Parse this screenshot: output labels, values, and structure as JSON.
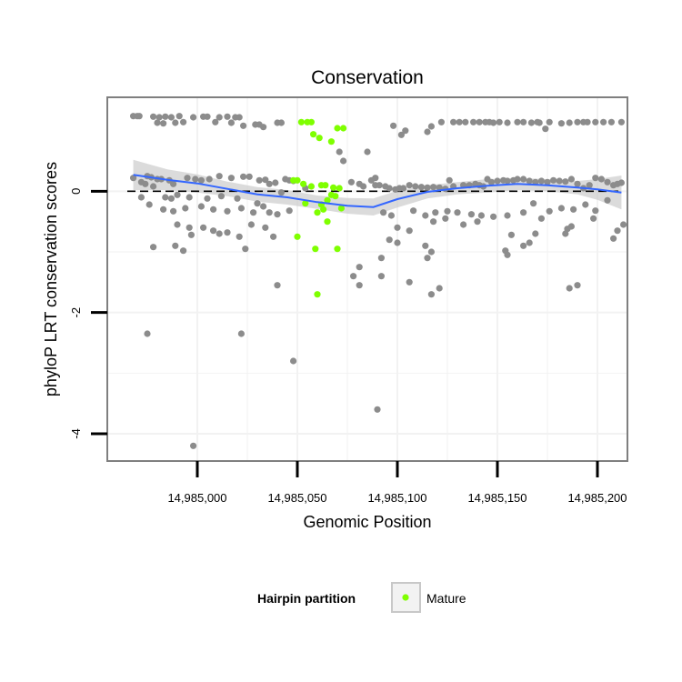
{
  "chart_data": {
    "type": "scatter",
    "title": "Conservation",
    "xlabel": "Genomic Position",
    "ylabel": "phyloP LRT conservation scores",
    "xlim": [
      14984955,
      14985215
    ],
    "ylim": [
      -4.45,
      1.55
    ],
    "x_ticks": [
      {
        "value": 14985000,
        "label": "14,985,000"
      },
      {
        "value": 14985050,
        "label": "14,985,050"
      },
      {
        "value": 14985100,
        "label": "14,985,100"
      },
      {
        "value": 14985150,
        "label": "14,985,150"
      },
      {
        "value": 14985200,
        "label": "14,985,200"
      }
    ],
    "y_ticks": [
      {
        "value": 0,
        "label": "0"
      },
      {
        "value": -2,
        "label": "-2"
      },
      {
        "value": -4,
        "label": "-4"
      }
    ],
    "reference_line": {
      "y": 0,
      "style": "dashed"
    },
    "grid": true,
    "colors": {
      "background_points": "#8c8c8c",
      "mature_points": "#7fff00",
      "smooth_line": "#3366ff",
      "confidence_band": "#cccccc",
      "panel_border": "#7f7f7f",
      "grid": "#f2f2f2"
    },
    "legend": {
      "title": "Hairpin partition",
      "position": "bottom",
      "entries": [
        {
          "label": "Mature",
          "color": "#7fff00"
        }
      ]
    },
    "series": [
      {
        "name": "",
        "color": "#8c8c8c",
        "points": [
          [
            14984968,
            1.24
          ],
          [
            14984970,
            1.24
          ],
          [
            14984971,
            1.24
          ],
          [
            14984978,
            1.23
          ],
          [
            14984980,
            1.13
          ],
          [
            14984981,
            1.22
          ],
          [
            14984983,
            1.12
          ],
          [
            14984984,
            1.23
          ],
          [
            14984987,
            1.22
          ],
          [
            14984989,
            1.13
          ],
          [
            14984991,
            1.24
          ],
          [
            14984993,
            1.14
          ],
          [
            14984998,
            1.22
          ],
          [
            14985003,
            1.23
          ],
          [
            14985005,
            1.23
          ],
          [
            14985009,
            1.14
          ],
          [
            14985011,
            1.22
          ],
          [
            14985015,
            1.23
          ],
          [
            14985017,
            1.13
          ],
          [
            14985019,
            1.22
          ],
          [
            14985021,
            1.22
          ],
          [
            14985023,
            1.08
          ],
          [
            14985029,
            1.1
          ],
          [
            14985031,
            1.1
          ],
          [
            14985033,
            1.06
          ],
          [
            14985040,
            1.13
          ],
          [
            14985042,
            1.13
          ],
          [
            14985098,
            1.08
          ],
          [
            14985102,
            0.93
          ],
          [
            14985104,
            1.0
          ],
          [
            14985115,
            0.98
          ],
          [
            14985117,
            1.07
          ],
          [
            14985122,
            1.14
          ],
          [
            14985128,
            1.14
          ],
          [
            14985131,
            1.14
          ],
          [
            14985134,
            1.14
          ],
          [
            14985138,
            1.14
          ],
          [
            14985141,
            1.14
          ],
          [
            14985144,
            1.14
          ],
          [
            14985146,
            1.14
          ],
          [
            14985148,
            1.13
          ],
          [
            14985151,
            1.14
          ],
          [
            14985155,
            1.13
          ],
          [
            14985160,
            1.14
          ],
          [
            14985163,
            1.14
          ],
          [
            14985167,
            1.13
          ],
          [
            14985170,
            1.14
          ],
          [
            14985171,
            1.13
          ],
          [
            14985174,
            1.03
          ],
          [
            14985176,
            1.14
          ],
          [
            14985182,
            1.12
          ],
          [
            14985186,
            1.13
          ],
          [
            14985190,
            1.14
          ],
          [
            14985193,
            1.14
          ],
          [
            14985195,
            1.14
          ],
          [
            14985199,
            1.14
          ],
          [
            14985203,
            1.14
          ],
          [
            14985207,
            1.14
          ],
          [
            14985212,
            1.14
          ],
          [
            14985071,
            0.65
          ],
          [
            14985073,
            0.5
          ],
          [
            14985085,
            0.65
          ],
          [
            14985077,
            0.15
          ],
          [
            14985081,
            0.12
          ],
          [
            14985083,
            0.08
          ],
          [
            14985087,
            0.18
          ],
          [
            14985089,
            0.22
          ],
          [
            14984968,
            0.22
          ],
          [
            14984972,
            0.15
          ],
          [
            14984975,
            0.25
          ],
          [
            14984977,
            0.23
          ],
          [
            14984980,
            0.2
          ],
          [
            14984982,
            0.2
          ],
          [
            14984986,
            0.18
          ],
          [
            14984988,
            0.12
          ],
          [
            14984995,
            0.22
          ],
          [
            14984999,
            0.2
          ],
          [
            14985002,
            0.18
          ],
          [
            14985006,
            0.2
          ],
          [
            14985011,
            0.25
          ],
          [
            14985017,
            0.22
          ],
          [
            14985023,
            0.24
          ],
          [
            14985026,
            0.24
          ],
          [
            14985031,
            0.18
          ],
          [
            14985034,
            0.19
          ],
          [
            14985036,
            0.12
          ],
          [
            14985039,
            0.14
          ],
          [
            14985044,
            0.2
          ],
          [
            14985046,
            0.18
          ],
          [
            14985048,
            0.17
          ],
          [
            14985089,
            0.1
          ],
          [
            14985091,
            0.1
          ],
          [
            14985094,
            0.08
          ],
          [
            14985096,
            0.05
          ],
          [
            14985099,
            0.03
          ],
          [
            14985101,
            0.05
          ],
          [
            14985103,
            0.05
          ],
          [
            14985106,
            0.1
          ],
          [
            14985109,
            0.08
          ],
          [
            14985112,
            0.07
          ],
          [
            14985115,
            0.06
          ],
          [
            14985118,
            0.07
          ],
          [
            14985121,
            0.06
          ],
          [
            14985124,
            0.04
          ],
          [
            14985126,
            0.18
          ],
          [
            14985128,
            0.08
          ],
          [
            14985133,
            0.1
          ],
          [
            14985136,
            0.1
          ],
          [
            14985139,
            0.12
          ],
          [
            14985141,
            0.1
          ],
          [
            14985143,
            0.08
          ],
          [
            14985145,
            0.2
          ],
          [
            14985147,
            0.15
          ],
          [
            14985150,
            0.17
          ],
          [
            14985153,
            0.18
          ],
          [
            14985155,
            0.17
          ],
          [
            14985158,
            0.18
          ],
          [
            14985160,
            0.2
          ],
          [
            14985163,
            0.2
          ],
          [
            14985166,
            0.17
          ],
          [
            14985169,
            0.15
          ],
          [
            14985172,
            0.17
          ],
          [
            14985175,
            0.15
          ],
          [
            14985178,
            0.18
          ],
          [
            14985181,
            0.17
          ],
          [
            14985184,
            0.16
          ],
          [
            14985187,
            0.2
          ],
          [
            14985190,
            0.12
          ],
          [
            14985193,
            0.05
          ],
          [
            14985196,
            0.1
          ],
          [
            14985199,
            0.22
          ],
          [
            14985202,
            0.2
          ],
          [
            14985205,
            0.15
          ],
          [
            14985208,
            0.1
          ],
          [
            14985210,
            0.12
          ],
          [
            14985212,
            0.14
          ],
          [
            14984974,
            0.12
          ],
          [
            14984978,
            0.08
          ],
          [
            14984984,
            -0.1
          ],
          [
            14984987,
            -0.12
          ],
          [
            14984990,
            -0.06
          ],
          [
            14984996,
            -0.1
          ],
          [
            14985005,
            -0.12
          ],
          [
            14985012,
            -0.08
          ],
          [
            14985020,
            -0.12
          ],
          [
            14985030,
            -0.2
          ],
          [
            14985033,
            -0.25
          ],
          [
            14985042,
            -0.02
          ],
          [
            14985054,
            0.05
          ],
          [
            14984972,
            -0.1
          ],
          [
            14984976,
            -0.22
          ],
          [
            14984983,
            -0.3
          ],
          [
            14984988,
            -0.33
          ],
          [
            14984994,
            -0.28
          ],
          [
            14985002,
            -0.25
          ],
          [
            14985008,
            -0.3
          ],
          [
            14985015,
            -0.33
          ],
          [
            14985022,
            -0.28
          ],
          [
            14985028,
            -0.35
          ],
          [
            14985036,
            -0.35
          ],
          [
            14985040,
            -0.38
          ],
          [
            14985046,
            -0.32
          ],
          [
            14985093,
            -0.35
          ],
          [
            14985097,
            -0.4
          ],
          [
            14985108,
            -0.32
          ],
          [
            14985114,
            -0.4
          ],
          [
            14985119,
            -0.35
          ],
          [
            14985125,
            -0.33
          ],
          [
            14985130,
            -0.35
          ],
          [
            14985137,
            -0.38
          ],
          [
            14985142,
            -0.4
          ],
          [
            14985148,
            -0.42
          ],
          [
            14985155,
            -0.4
          ],
          [
            14985163,
            -0.35
          ],
          [
            14985168,
            -0.2
          ],
          [
            14985176,
            -0.33
          ],
          [
            14985182,
            -0.28
          ],
          [
            14985188,
            -0.3
          ],
          [
            14985194,
            -0.22
          ],
          [
            14985199,
            -0.32
          ],
          [
            14985205,
            -0.15
          ],
          [
            14984990,
            -0.55
          ],
          [
            14984996,
            -0.6
          ],
          [
            14985003,
            -0.6
          ],
          [
            14985008,
            -0.65
          ],
          [
            14985011,
            -0.7
          ],
          [
            14985015,
            -0.68
          ],
          [
            14985021,
            -0.75
          ],
          [
            14985027,
            -0.55
          ],
          [
            14985034,
            -0.6
          ],
          [
            14985038,
            -0.75
          ],
          [
            14985100,
            -0.6
          ],
          [
            14985106,
            -0.65
          ],
          [
            14985118,
            -0.5
          ],
          [
            14985124,
            -0.45
          ],
          [
            14985133,
            -0.55
          ],
          [
            14985140,
            -0.5
          ],
          [
            14985157,
            -0.72
          ],
          [
            14985172,
            -0.45
          ],
          [
            14985185,
            -0.62
          ],
          [
            14985187,
            -0.58
          ],
          [
            14985198,
            -0.45
          ],
          [
            14985208,
            -0.78
          ],
          [
            14985210,
            -0.65
          ],
          [
            14985213,
            -0.55
          ],
          [
            14984978,
            -0.92
          ],
          [
            14984989,
            -0.9
          ],
          [
            14984993,
            -0.98
          ],
          [
            14984997,
            -0.72
          ],
          [
            14985024,
            -0.95
          ],
          [
            14985096,
            -0.8
          ],
          [
            14985100,
            -0.85
          ],
          [
            14985114,
            -0.9
          ],
          [
            14985117,
            -1.0
          ],
          [
            14985154,
            -0.98
          ],
          [
            14985163,
            -0.9
          ],
          [
            14985166,
            -0.85
          ],
          [
            14985169,
            -0.7
          ],
          [
            14985184,
            -0.7
          ],
          [
            14985081,
            -1.25
          ],
          [
            14985092,
            -1.1
          ],
          [
            14985106,
            -1.5
          ],
          [
            14985117,
            -1.7
          ],
          [
            14985121,
            -1.6
          ],
          [
            14985078,
            -1.4
          ],
          [
            14985081,
            -1.55
          ],
          [
            14985092,
            -1.4
          ],
          [
            14985115,
            -1.1
          ],
          [
            14985040,
            -1.55
          ],
          [
            14985155,
            -1.05
          ],
          [
            14985186,
            -1.6
          ],
          [
            14985190,
            -1.55
          ],
          [
            14984975,
            -2.35
          ],
          [
            14985022,
            -2.35
          ],
          [
            14985048,
            -2.8
          ],
          [
            14985090,
            -3.6
          ],
          [
            14984998,
            -4.2
          ]
        ]
      },
      {
        "name": "Mature",
        "color": "#7fff00",
        "points": [
          [
            14985052,
            1.14
          ],
          [
            14985055,
            1.14
          ],
          [
            14985057,
            1.14
          ],
          [
            14985058,
            0.94
          ],
          [
            14985061,
            0.88
          ],
          [
            14985067,
            0.82
          ],
          [
            14985070,
            1.04
          ],
          [
            14985073,
            1.04
          ],
          [
            14985048,
            0.18
          ],
          [
            14985050,
            0.18
          ],
          [
            14985053,
            0.12
          ],
          [
            14985057,
            0.08
          ],
          [
            14985062,
            0.1
          ],
          [
            14985064,
            0.1
          ],
          [
            14985068,
            0.06
          ],
          [
            14985071,
            0.05
          ],
          [
            14985067,
            -0.06
          ],
          [
            14985069,
            -0.08
          ],
          [
            14985065,
            -0.15
          ],
          [
            14985062,
            -0.22
          ],
          [
            14985054,
            -0.2
          ],
          [
            14985060,
            -0.35
          ],
          [
            14985063,
            -0.3
          ],
          [
            14985072,
            -0.28
          ],
          [
            14985065,
            -0.5
          ],
          [
            14985050,
            -0.75
          ],
          [
            14985059,
            -0.95
          ],
          [
            14985070,
            -0.95
          ],
          [
            14985060,
            -1.7
          ]
        ]
      }
    ],
    "smooth": {
      "x": [
        14984968,
        14984985,
        14985000,
        14985015,
        14985030,
        14985045,
        14985060,
        14985075,
        14985088,
        14985100,
        14985115,
        14985130,
        14985145,
        14985160,
        14985175,
        14985190,
        14985200,
        14985212
      ],
      "y": [
        0.27,
        0.19,
        0.13,
        0.04,
        -0.05,
        -0.1,
        -0.18,
        -0.24,
        -0.26,
        -0.13,
        -0.01,
        0.05,
        0.09,
        0.12,
        0.1,
        0.06,
        0.03,
        -0.02
      ],
      "lower": [
        0.02,
        0.02,
        -0.02,
        -0.08,
        -0.17,
        -0.22,
        -0.29,
        -0.37,
        -0.4,
        -0.27,
        -0.12,
        -0.05,
        -0.02,
        0.02,
        0.0,
        -0.05,
        -0.14,
        -0.3
      ],
      "upper": [
        0.52,
        0.36,
        0.28,
        0.16,
        0.07,
        0.02,
        -0.07,
        -0.11,
        -0.12,
        0.01,
        0.1,
        0.15,
        0.2,
        0.22,
        0.2,
        0.17,
        0.2,
        0.26
      ]
    }
  }
}
